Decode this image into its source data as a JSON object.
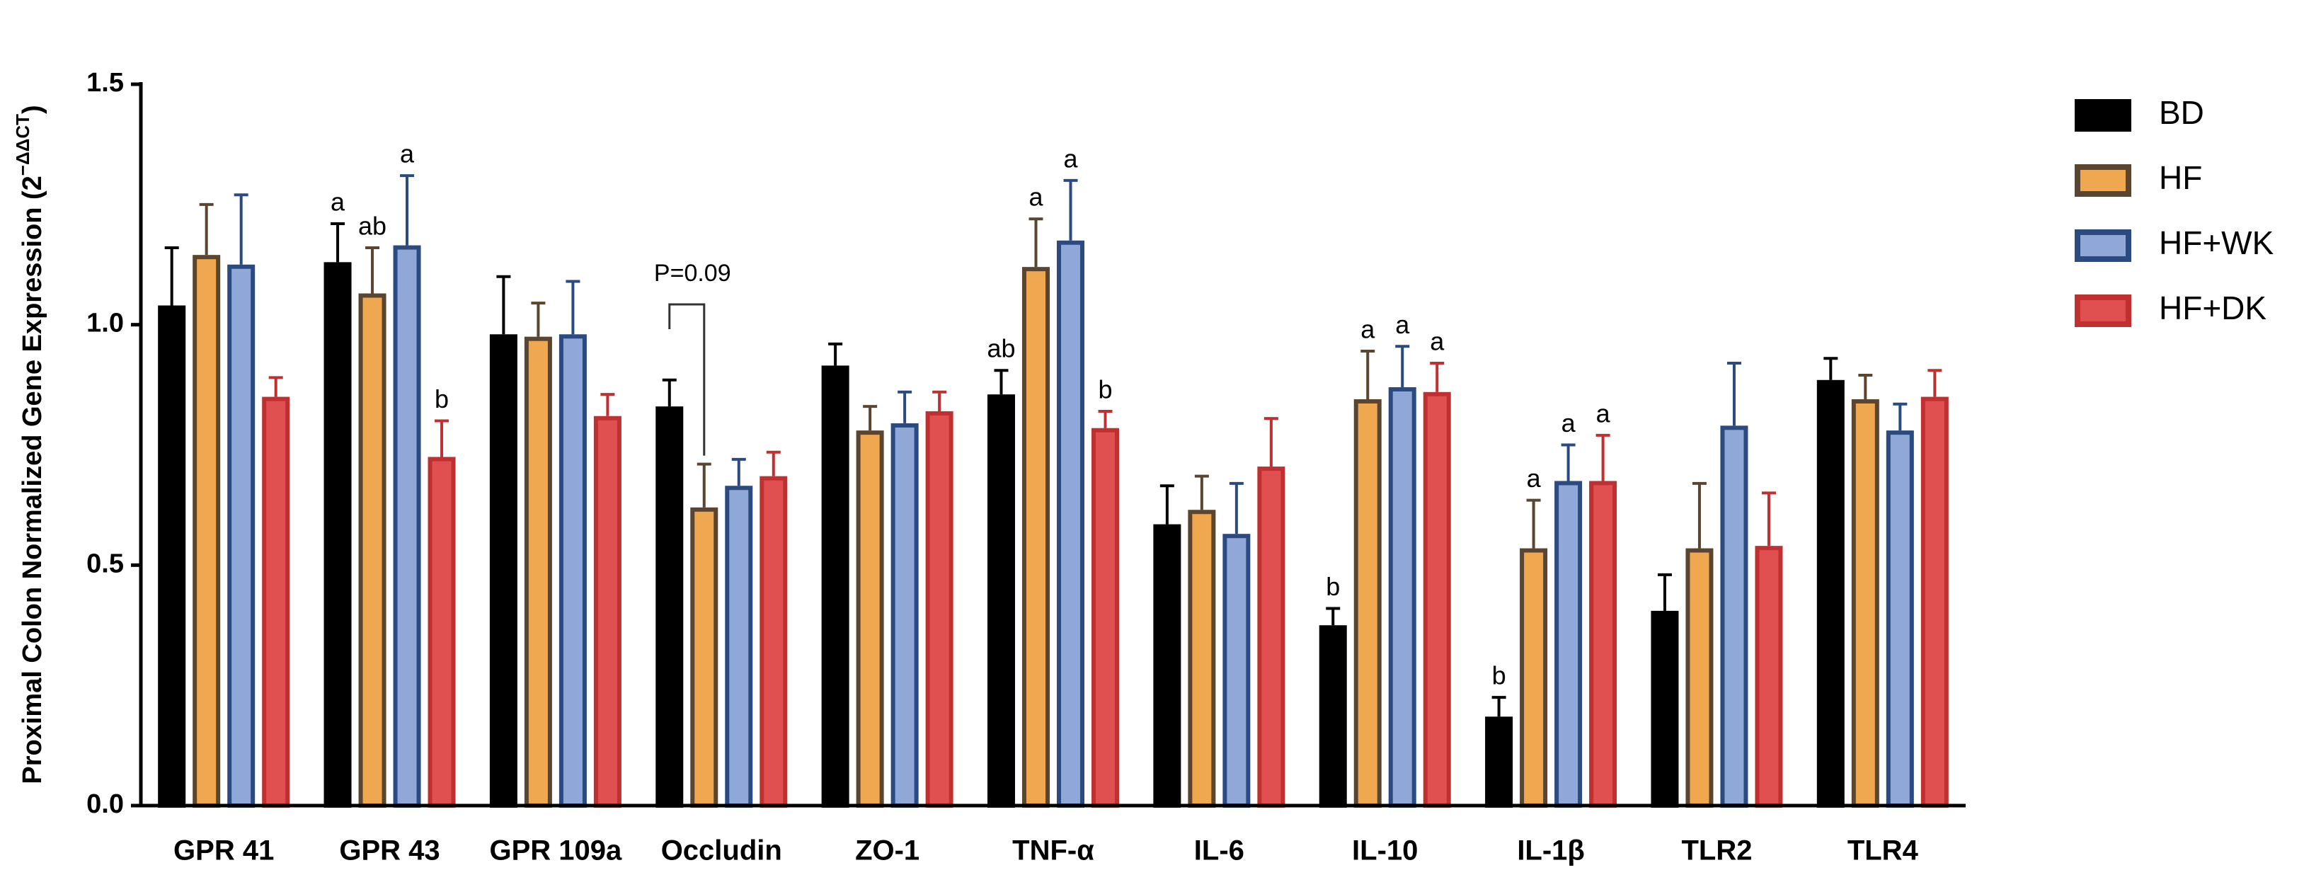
{
  "chart_data": {
    "type": "bar",
    "ylabel": {
      "text": "Proximal Colon Normalized Gene Expression (2",
      "sup": "−ΔΔCT",
      "tail": ")"
    },
    "categories": [
      "GPR 41",
      "GPR 43",
      "GPR 109a",
      "Occludin",
      "ZO-1",
      "TNF-α",
      "IL-6",
      "IL-10",
      "IL-1β",
      "TLR2",
      "TLR4"
    ],
    "ylim": [
      0,
      1.5
    ],
    "yticks": [
      {
        "value": 0,
        "label": "0.0"
      },
      {
        "value": 0.5,
        "label": "0.5"
      },
      {
        "value": 1,
        "label": "1.0"
      },
      {
        "value": 1.5,
        "label": "1.5"
      }
    ],
    "legend": "right",
    "series": [
      {
        "name": "BD",
        "color": "#000000",
        "edge": "#000000",
        "values": [
          1.04,
          1.13,
          0.98,
          0.83,
          0.915,
          0.855,
          0.585,
          0.375,
          0.185,
          0.405,
          0.885
        ],
        "errors": [
          0.12,
          0.08,
          0.12,
          0.055,
          0.045,
          0.05,
          0.08,
          0.035,
          0.04,
          0.075,
          0.045
        ],
        "significance": [
          null,
          "a",
          null,
          null,
          null,
          "ab",
          null,
          "b",
          "b",
          null,
          null
        ]
      },
      {
        "name": "HF",
        "color": "#f0a850",
        "edge": "#5a4530",
        "values": [
          1.145,
          1.065,
          0.975,
          0.62,
          0.78,
          1.12,
          0.615,
          0.845,
          0.535,
          0.535,
          0.845
        ],
        "errors": [
          0.105,
          0.095,
          0.07,
          0.09,
          0.05,
          0.1,
          0.07,
          0.1,
          0.1,
          0.135,
          0.05
        ],
        "significance": [
          null,
          "ab",
          null,
          null,
          null,
          "a",
          null,
          "a",
          "a",
          null,
          null
        ]
      },
      {
        "name": "HF+WK",
        "color": "#8fa8d8",
        "edge": "#2a4a80",
        "values": [
          1.125,
          1.165,
          0.98,
          0.665,
          0.795,
          1.175,
          0.565,
          0.87,
          0.675,
          0.79,
          0.78
        ],
        "errors": [
          0.145,
          0.145,
          0.11,
          0.055,
          0.065,
          0.125,
          0.105,
          0.085,
          0.075,
          0.13,
          0.055
        ],
        "significance": [
          null,
          "a",
          null,
          null,
          null,
          "a",
          null,
          "a",
          "a",
          null,
          null
        ]
      },
      {
        "name": "HF+DK",
        "color": "#e05050",
        "edge": "#c03030",
        "values": [
          0.85,
          0.725,
          0.81,
          0.685,
          0.82,
          0.785,
          0.705,
          0.86,
          0.675,
          0.54,
          0.85
        ],
        "errors": [
          0.04,
          0.075,
          0.045,
          0.05,
          0.04,
          0.035,
          0.1,
          0.06,
          0.095,
          0.11,
          0.055
        ],
        "significance": [
          null,
          "b",
          null,
          null,
          null,
          "b",
          null,
          "a",
          "a",
          null,
          null
        ]
      }
    ],
    "annotations": [
      {
        "text": "P=0.09"
      }
    ]
  }
}
